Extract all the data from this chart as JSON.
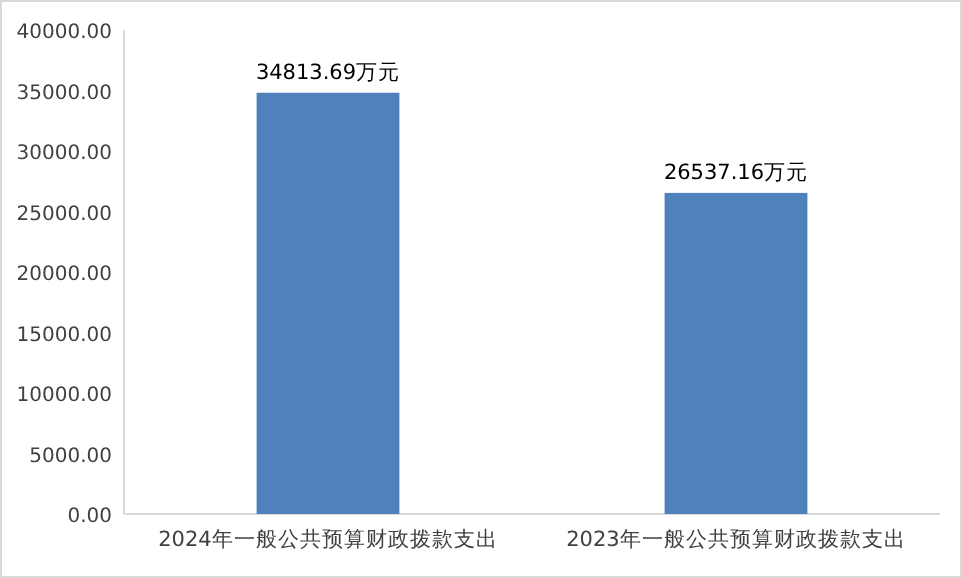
{
  "chart_data": {
    "type": "bar",
    "categories": [
      "2024年一般公共预算财政拨款支出",
      "2023年一般公共预算财政拨款支出"
    ],
    "values": [
      34813.69,
      26537.16
    ],
    "value_labels": [
      "34813.69万元",
      "26537.16万元"
    ],
    "color": "#4f81bd",
    "ylim": [
      0,
      40000
    ],
    "yticks": [
      {
        "value": 0,
        "label": "0.00"
      },
      {
        "value": 5000,
        "label": "5000.00"
      },
      {
        "value": 10000,
        "label": "10000.00"
      },
      {
        "value": 15000,
        "label": "15000.00"
      },
      {
        "value": 20000,
        "label": "20000.00"
      },
      {
        "value": 25000,
        "label": "25000.00"
      },
      {
        "value": 30000,
        "label": "30000.00"
      },
      {
        "value": 35000,
        "label": "35000.00"
      },
      {
        "value": 40000,
        "label": "40000.00"
      }
    ],
    "grid": false
  }
}
